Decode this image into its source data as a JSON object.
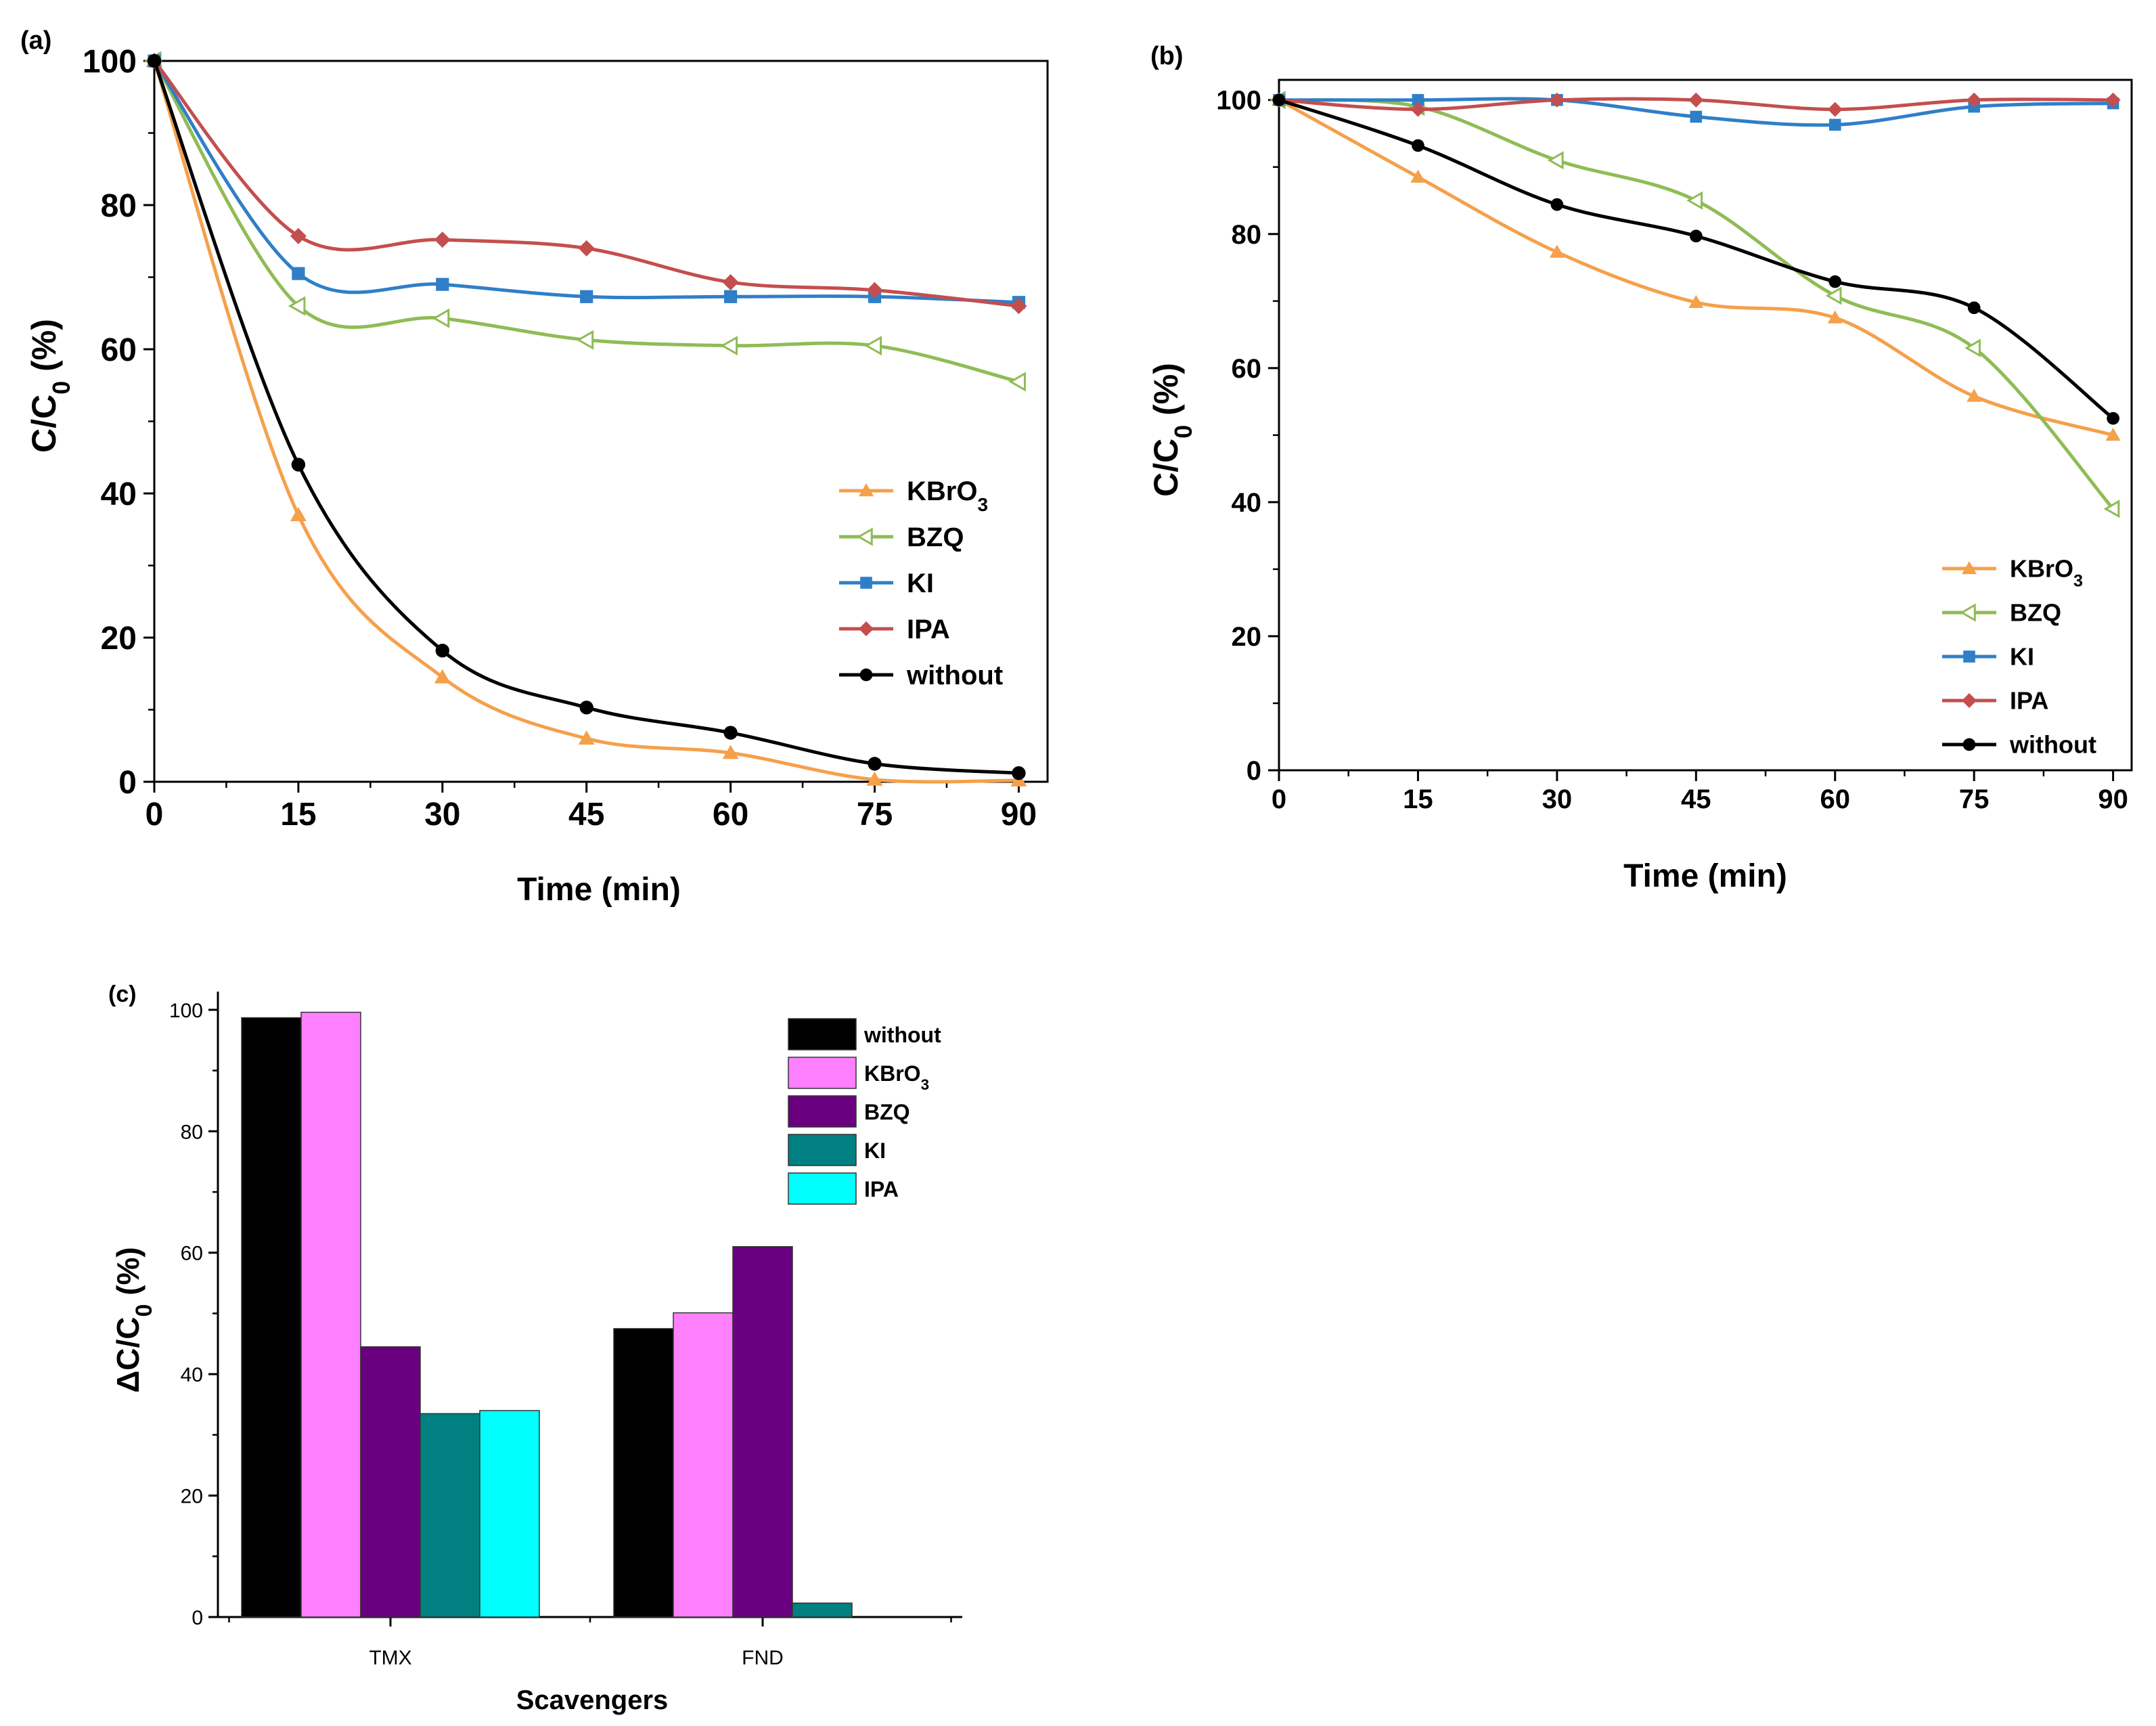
{
  "figure": {
    "panel_labels": [
      "(a)",
      "(b)",
      "(c)"
    ]
  },
  "chart_data": [
    {
      "type": "line",
      "panel": "(a)",
      "title": "",
      "xlabel": "Time (min)",
      "ylabel": "C/C0 (%)",
      "ylabel_parts": {
        "main": "C/C",
        "sub": "0",
        "tail": " (%)"
      },
      "xlim": [
        0,
        93
      ],
      "ylim": [
        0,
        100
      ],
      "xticks": [
        0,
        15,
        30,
        45,
        60,
        75,
        90
      ],
      "yticks": [
        0,
        20,
        40,
        60,
        80,
        100
      ],
      "x": [
        0,
        15,
        30,
        45,
        60,
        75,
        90
      ],
      "legend_position": "right",
      "series": [
        {
          "name": "KBrO3",
          "label_main": "KBrO",
          "label_sub": "3",
          "color": "#f5a04a",
          "marker": "triangle-up",
          "values": [
            100,
            37,
            14.5,
            6,
            4,
            0.3,
            0.2
          ]
        },
        {
          "name": "BZQ",
          "label_main": "BZQ",
          "label_sub": "",
          "color": "#8fbc55",
          "marker": "triangle-left-open",
          "values": [
            100,
            66,
            64.3,
            61.3,
            60.5,
            60.5,
            55.5
          ]
        },
        {
          "name": "KI",
          "label_main": "KI",
          "label_sub": "",
          "color": "#2f7fc8",
          "marker": "square",
          "values": [
            100,
            70.5,
            69,
            67.3,
            67.3,
            67.3,
            66.5
          ]
        },
        {
          "name": "IPA",
          "label_main": "IPA",
          "label_sub": "",
          "color": "#c44e4e",
          "marker": "diamond",
          "values": [
            100,
            75.7,
            75.2,
            74,
            69.3,
            68.2,
            66
          ]
        },
        {
          "name": "without",
          "label_main": "without",
          "label_sub": "",
          "color": "#000000",
          "marker": "circle",
          "values": [
            100,
            44,
            18.2,
            10.3,
            6.8,
            2.5,
            1.2
          ]
        }
      ]
    },
    {
      "type": "line",
      "panel": "(b)",
      "title": "",
      "xlabel": "Time (min)",
      "ylabel": "C/C0 (%)",
      "ylabel_parts": {
        "main": "C/C",
        "sub": "0",
        "tail": " (%)"
      },
      "xlim": [
        0,
        92
      ],
      "ylim": [
        0,
        103
      ],
      "xticks": [
        0,
        15,
        30,
        45,
        60,
        75,
        90
      ],
      "yticks": [
        0,
        20,
        40,
        60,
        80,
        100
      ],
      "x": [
        0,
        15,
        30,
        45,
        60,
        75,
        90
      ],
      "legend_position": "bottom-right",
      "series": [
        {
          "name": "KBrO3",
          "label_main": "KBrO",
          "label_sub": "3",
          "color": "#f5a04a",
          "marker": "triangle-up",
          "values": [
            100,
            88.5,
            77.3,
            69.8,
            67.5,
            55.8,
            50
          ]
        },
        {
          "name": "BZQ",
          "label_main": "BZQ",
          "label_sub": "",
          "color": "#8fbc55",
          "marker": "triangle-left-open",
          "values": [
            100,
            99,
            91,
            85,
            70.8,
            63,
            39
          ]
        },
        {
          "name": "KI",
          "label_main": "KI",
          "label_sub": "",
          "color": "#2f7fc8",
          "marker": "square",
          "values": [
            100,
            100,
            100,
            97.5,
            96.3,
            99,
            99.5
          ]
        },
        {
          "name": "IPA",
          "label_main": "IPA",
          "label_sub": "",
          "color": "#c44e4e",
          "marker": "diamond",
          "values": [
            100,
            98.6,
            100,
            100,
            98.6,
            100,
            100
          ]
        },
        {
          "name": "without",
          "label_main": "without",
          "label_sub": "",
          "color": "#000000",
          "marker": "circle",
          "values": [
            100,
            93.2,
            84.4,
            79.7,
            72.9,
            69,
            52.5
          ]
        }
      ]
    },
    {
      "type": "bar",
      "panel": "(c)",
      "title": "",
      "xlabel": "Scavengers",
      "ylabel": "ΔC/C0 (%)",
      "ylabel_parts": {
        "main": "ΔC/C",
        "sub": "0",
        "tail": " (%)"
      },
      "ylim": [
        0,
        103
      ],
      "yticks": [
        0,
        20,
        40,
        60,
        80,
        100
      ],
      "categories": [
        "TMX",
        "FND"
      ],
      "legend_position": "top-right",
      "series": [
        {
          "name": "without",
          "label_main": "without",
          "label_sub": "",
          "color": "#000000",
          "values": [
            98.7,
            47.5
          ]
        },
        {
          "name": "KBrO3",
          "label_main": "KBrO",
          "label_sub": "3",
          "color": "#ff80ff",
          "values": [
            99.6,
            50.1
          ]
        },
        {
          "name": "BZQ",
          "label_main": "BZQ",
          "label_sub": "",
          "color": "#6a0080",
          "values": [
            44.5,
            61
          ]
        },
        {
          "name": "KI",
          "label_main": "KI",
          "label_sub": "",
          "color": "#008080",
          "values": [
            33.5,
            2.3
          ]
        },
        {
          "name": "IPA",
          "label_main": "IPA",
          "label_sub": "",
          "color": "#00ffff",
          "values": [
            34,
            0
          ]
        }
      ]
    }
  ]
}
